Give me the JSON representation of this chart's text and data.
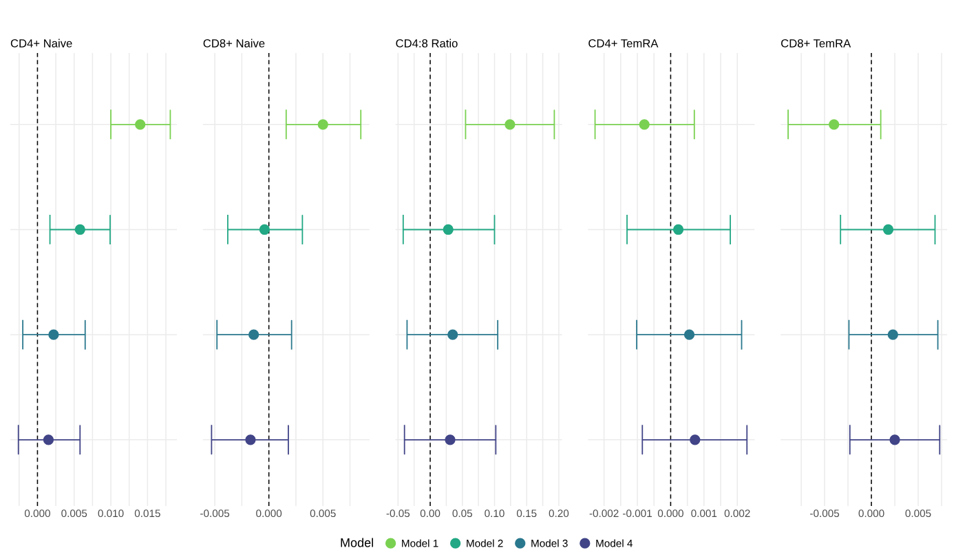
{
  "chart_data": [
    {
      "type": "scatter",
      "orientation": "horizontal",
      "title": "CD4+ Naive",
      "categories": [
        null,
        null,
        null,
        null
      ],
      "marker": "circle",
      "grid": true,
      "tick_labels": "x",
      "legend": "bottom",
      "legend_title": "Model",
      "series": [
        {
          "name": "Model 1",
          "color": "#7ad151",
          "values": [
            0.014,
            null,
            null,
            null
          ],
          "errors": [
            [
              0.01,
              0.0181
            ],
            null,
            null,
            null
          ]
        },
        {
          "name": "Model 2",
          "color": "#22a884",
          "values": [
            null,
            0.0058,
            null,
            null
          ],
          "errors": [
            null,
            [
              0.0017,
              0.0099
            ],
            null,
            null
          ]
        },
        {
          "name": "Model 3",
          "color": "#2a788e",
          "values": [
            null,
            null,
            0.0022,
            null
          ],
          "errors": [
            null,
            null,
            [
              -0.002,
              0.0065
            ],
            null
          ]
        },
        {
          "name": "Model 4",
          "color": "#414487",
          "values": [
            null,
            null,
            null,
            0.0015
          ],
          "errors": [
            null,
            null,
            null,
            [
              -0.0026,
              0.0058
            ]
          ]
        }
      ],
      "xlim": [
        -0.0037,
        0.019
      ],
      "xticks": [
        {
          "value": -0.0025,
          "label": null
        },
        {
          "value": 0,
          "label": "0.000"
        },
        {
          "value": 0.0025,
          "label": null
        },
        {
          "value": 0.005,
          "label": "0.005"
        },
        {
          "value": 0.0075,
          "label": null
        },
        {
          "value": 0.01,
          "label": "0.010"
        },
        {
          "value": 0.0125,
          "label": null
        },
        {
          "value": 0.015,
          "label": "0.015"
        },
        {
          "value": 0.0175,
          "label": null
        }
      ],
      "ref_lines": [
        {
          "axis": "x",
          "value": 0,
          "color": "#000000",
          "line_style": "dashed"
        }
      ]
    },
    {
      "type": "scatter",
      "orientation": "horizontal",
      "title": "CD8+ Naive",
      "categories": [
        null,
        null,
        null,
        null
      ],
      "marker": "circle",
      "grid": true,
      "tick_labels": "x",
      "series": [
        {
          "color": "#7ad151",
          "values": [
            0.005,
            null,
            null,
            null
          ],
          "errors": [
            [
              0.0016,
              0.0085
            ],
            null,
            null,
            null
          ]
        },
        {
          "color": "#22a884",
          "values": [
            null,
            -0.0004,
            null,
            null
          ],
          "errors": [
            null,
            [
              -0.0038,
              0.0031
            ],
            null,
            null
          ]
        },
        {
          "color": "#2a788e",
          "values": [
            null,
            null,
            -0.0014,
            null
          ],
          "errors": [
            null,
            null,
            [
              -0.0048,
              0.0021
            ],
            null
          ]
        },
        {
          "color": "#414487",
          "values": [
            null,
            null,
            null,
            -0.0017
          ],
          "errors": [
            null,
            null,
            null,
            [
              -0.0053,
              0.0018
            ]
          ]
        }
      ],
      "xlim": [
        -0.0061,
        0.0093
      ],
      "xticks": [
        {
          "value": -0.005,
          "label": "-0.005"
        },
        {
          "value": -0.0025,
          "label": null
        },
        {
          "value": 0,
          "label": "0.000"
        },
        {
          "value": 0.0025,
          "label": null
        },
        {
          "value": 0.005,
          "label": "0.005"
        },
        {
          "value": 0.0075,
          "label": null
        }
      ],
      "ref_lines": [
        {
          "axis": "x",
          "value": 0,
          "color": "#000000",
          "line_style": "dashed"
        }
      ]
    },
    {
      "type": "scatter",
      "orientation": "horizontal",
      "title": "CD4:8 Ratio",
      "categories": [
        null,
        null,
        null,
        null
      ],
      "marker": "circle",
      "grid": true,
      "tick_labels": "x",
      "series": [
        {
          "color": "#7ad151",
          "values": [
            0.124,
            null,
            null,
            null
          ],
          "errors": [
            [
              0.055,
              0.193
            ],
            null,
            null,
            null
          ]
        },
        {
          "color": "#22a884",
          "values": [
            null,
            0.028,
            null,
            null
          ],
          "errors": [
            null,
            [
              -0.042,
              0.1
            ],
            null,
            null
          ]
        },
        {
          "color": "#2a788e",
          "values": [
            null,
            null,
            0.035,
            null
          ],
          "errors": [
            null,
            null,
            [
              -0.036,
              0.105
            ],
            null
          ]
        },
        {
          "color": "#414487",
          "values": [
            null,
            null,
            null,
            0.031
          ],
          "errors": [
            null,
            null,
            null,
            [
              -0.04,
              0.102
            ]
          ]
        }
      ],
      "xlim": [
        -0.054,
        0.205
      ],
      "xticks": [
        {
          "value": -0.05,
          "label": "-0.05"
        },
        {
          "value": -0.025,
          "label": null
        },
        {
          "value": 0,
          "label": "0.00"
        },
        {
          "value": 0.025,
          "label": null
        },
        {
          "value": 0.05,
          "label": "0.05"
        },
        {
          "value": 0.075,
          "label": null
        },
        {
          "value": 0.1,
          "label": "0.10"
        },
        {
          "value": 0.125,
          "label": null
        },
        {
          "value": 0.15,
          "label": "0.15"
        },
        {
          "value": 0.175,
          "label": null
        },
        {
          "value": 0.2,
          "label": "0.20"
        }
      ],
      "ref_lines": [
        {
          "axis": "x",
          "value": 0,
          "color": "#000000",
          "line_style": "dashed"
        }
      ]
    },
    {
      "type": "scatter",
      "orientation": "horizontal",
      "title": "CD4+ TemRA",
      "categories": [
        null,
        null,
        null,
        null
      ],
      "marker": "circle",
      "grid": true,
      "tick_labels": "x",
      "series": [
        {
          "color": "#7ad151",
          "values": [
            -0.00079,
            null,
            null,
            null
          ],
          "errors": [
            [
              -0.00227,
              0.00071
            ],
            null,
            null,
            null
          ]
        },
        {
          "color": "#22a884",
          "values": [
            null,
            0.00023,
            null,
            null
          ],
          "errors": [
            null,
            [
              -0.00131,
              0.00179
            ],
            null,
            null
          ]
        },
        {
          "color": "#2a788e",
          "values": [
            null,
            null,
            0.00056,
            null
          ],
          "errors": [
            null,
            null,
            [
              -0.00102,
              0.00213
            ],
            null
          ]
        },
        {
          "color": "#414487",
          "values": [
            null,
            null,
            null,
            0.00073
          ],
          "errors": [
            null,
            null,
            null,
            [
              -0.00085,
              0.00229
            ]
          ]
        }
      ],
      "xlim": [
        -0.00248,
        0.00252
      ],
      "xticks": [
        {
          "value": -0.002,
          "label": "-0.002"
        },
        {
          "value": -0.0015,
          "label": null
        },
        {
          "value": -0.001,
          "label": "-0.001"
        },
        {
          "value": -0.0005,
          "label": null
        },
        {
          "value": 0,
          "label": "0.000"
        },
        {
          "value": 0.0005,
          "label": null
        },
        {
          "value": 0.001,
          "label": "0.001"
        },
        {
          "value": 0.0015,
          "label": null
        },
        {
          "value": 0.002,
          "label": "0.002"
        }
      ],
      "ref_lines": [
        {
          "axis": "x",
          "value": 0,
          "color": "#000000",
          "line_style": "dashed"
        }
      ]
    },
    {
      "type": "scatter",
      "orientation": "horizontal",
      "title": "CD8+ TemRA",
      "categories": [
        null,
        null,
        null,
        null
      ],
      "marker": "circle",
      "grid": true,
      "tick_labels": "x",
      "series": [
        {
          "color": "#7ad151",
          "values": [
            -0.004,
            null,
            null,
            null
          ],
          "errors": [
            [
              -0.0089,
              0.001
            ],
            null,
            null,
            null
          ]
        },
        {
          "color": "#22a884",
          "values": [
            null,
            0.0018,
            null,
            null
          ],
          "errors": [
            null,
            [
              -0.0033,
              0.0068
            ],
            null,
            null
          ]
        },
        {
          "color": "#2a788e",
          "values": [
            null,
            null,
            0.0023,
            null
          ],
          "errors": [
            null,
            null,
            [
              -0.0024,
              0.0071
            ],
            null
          ]
        },
        {
          "color": "#414487",
          "values": [
            null,
            null,
            null,
            0.0025
          ],
          "errors": [
            null,
            null,
            null,
            [
              -0.0023,
              0.0073
            ]
          ]
        }
      ],
      "xlim": [
        -0.0097,
        0.0081
      ],
      "xticks": [
        {
          "value": -0.0075,
          "label": null
        },
        {
          "value": -0.005,
          "label": "-0.005"
        },
        {
          "value": -0.0025,
          "label": null
        },
        {
          "value": 0,
          "label": "0.000"
        },
        {
          "value": 0.0025,
          "label": null
        },
        {
          "value": 0.005,
          "label": "0.005"
        },
        {
          "value": 0.0075,
          "label": null
        }
      ],
      "ref_lines": [
        {
          "axis": "x",
          "value": 0,
          "color": "#000000",
          "line_style": "dashed"
        }
      ]
    }
  ]
}
